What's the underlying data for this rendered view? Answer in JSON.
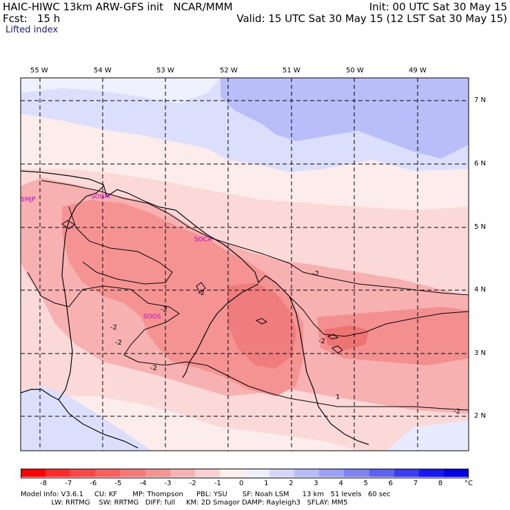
{
  "header": {
    "model_title": "HAIC-HIWC 13km ARW-GFS init   NCAR/MMM",
    "init": "Init: 00 UTC Sat 30 May 15",
    "fcst": "Fcst:   15 h",
    "valid": "Valid: 15 UTC Sat 30 May 15 (12 LST Sat 30 May 15)",
    "field": "Lifted index"
  },
  "map": {
    "lon_labels": [
      "55 W",
      "54 W",
      "53 W",
      "52 W",
      "51 W",
      "50 W",
      "49 W"
    ],
    "lat_labels": [
      "7 N",
      "6 N",
      "5 N",
      "4 N",
      "3 N",
      "2 N"
    ],
    "stations": [
      "SMJP",
      "SOGM",
      "SOCA",
      "SOOS"
    ],
    "contour_labels": [
      "-2",
      "-2",
      "-2",
      "-2",
      "-2",
      "-2",
      "-2",
      "1",
      "-2"
    ]
  },
  "colorbar": {
    "ticks": [
      "-8",
      "-7",
      "-6",
      "-5",
      "-4",
      "-3",
      "-2",
      "-1",
      "0",
      "1",
      "2",
      "3",
      "4",
      "5",
      "6",
      "7",
      "8"
    ],
    "unit": "°C",
    "colors": [
      "#ff0000",
      "#ff2a2a",
      "#ff4444",
      "#ff5c5c",
      "#fa7777",
      "#f59393",
      "#f7b1b1",
      "#fcd0d0",
      "#fff0f0",
      "#eeeeff",
      "#d4d6fc",
      "#b8bbfa",
      "#9c9ff8",
      "#7f82f6",
      "#5d60f4",
      "#3a3df2",
      "#1719f0",
      "#0000e6"
    ]
  },
  "footer": {
    "line1": "Model Info: V3.6.1     CU: KF       MP: Thompson      PBL: YSU       SF: Noah LSM      13 km   51 levels   60 sec",
    "line2": "              LW: RRTMG    SW: RRTMG   DIFF: full     KM: 2D Smagor DAMP: Rayleigh3   SFLAY: MM5"
  }
}
